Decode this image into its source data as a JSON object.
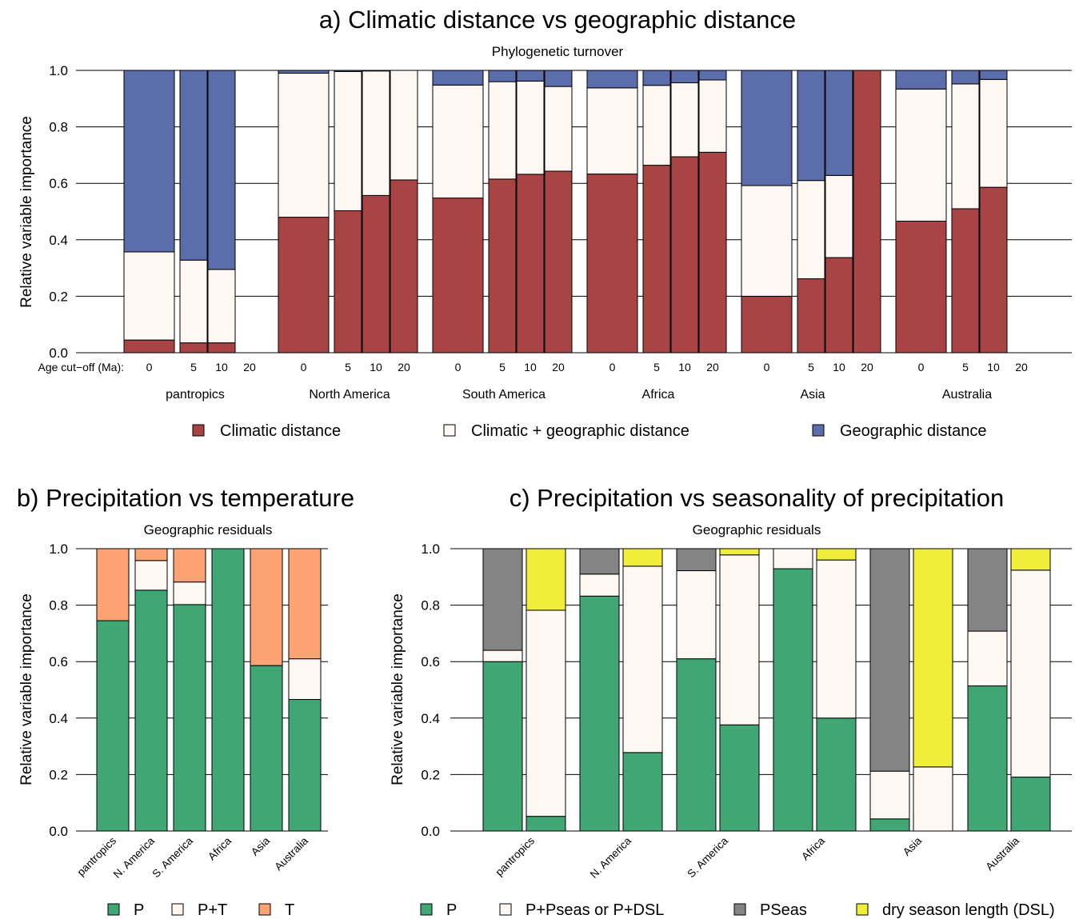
{
  "colors": {
    "climatic": "#A84444",
    "both": "#FEF7F2",
    "geographic": "#5B6DAB",
    "P": "#3FA674",
    "T": "#FCA374",
    "PSeas": "#848484",
    "DSL": "#F1EE3A",
    "grid": "#000000"
  },
  "chart_data": [
    {
      "id": "a",
      "type": "bar",
      "stacked": true,
      "title": "a) Climatic distance vs geographic distance",
      "subtitle": "Phylogenetic turnover",
      "ylabel": "Relative variable importance",
      "ylim": [
        0,
        1
      ],
      "yticks": [
        "0.0",
        "0.2",
        "0.4",
        "0.6",
        "0.8",
        "1.0"
      ],
      "age_label": "Age cut−off (Ma):",
      "ages": [
        "0",
        "5",
        "10",
        "20"
      ],
      "groups": [
        "pantropics",
        "North America",
        "South America",
        "Africa",
        "Asia",
        "Australia"
      ],
      "series_names": [
        "Climatic distance",
        "Climatic + geographic distance",
        "Geographic distance"
      ],
      "data": [
        [
          [
            0.045,
            0.312,
            0.643
          ],
          [
            0.035,
            0.293,
            0.672
          ],
          [
            0.035,
            0.26,
            0.705
          ],
          null
        ],
        [
          [
            0.48,
            0.51,
            0.01
          ],
          [
            0.503,
            0.493,
            0.004
          ],
          [
            0.557,
            0.441,
            0.002
          ],
          [
            0.612,
            0.388,
            0.0
          ]
        ],
        [
          [
            0.548,
            0.4,
            0.052
          ],
          [
            0.615,
            0.345,
            0.04
          ],
          [
            0.632,
            0.33,
            0.038
          ],
          [
            0.643,
            0.3,
            0.057
          ]
        ],
        [
          [
            0.633,
            0.305,
            0.062
          ],
          [
            0.664,
            0.283,
            0.053
          ],
          [
            0.694,
            0.262,
            0.044
          ],
          [
            0.71,
            0.256,
            0.034
          ]
        ],
        [
          [
            0.2,
            0.392,
            0.408
          ],
          [
            0.262,
            0.348,
            0.39
          ],
          [
            0.337,
            0.291,
            0.372
          ],
          [
            1.0,
            0.0,
            0.0
          ]
        ],
        [
          [
            0.466,
            0.468,
            0.066
          ],
          [
            0.51,
            0.442,
            0.048
          ],
          [
            0.586,
            0.382,
            0.032
          ],
          null
        ]
      ]
    },
    {
      "id": "b",
      "type": "bar",
      "stacked": true,
      "title": "b) Precipitation vs temperature",
      "subtitle": "Geographic residuals",
      "ylabel": "Relative variable importance",
      "ylim": [
        0,
        1
      ],
      "yticks": [
        "0.0",
        "0.2",
        "0.4",
        "0.6",
        "0.8",
        "1.0"
      ],
      "categories": [
        "pantropics",
        "N. America",
        "S. America",
        "Africa",
        "Asia",
        "Australia"
      ],
      "series_names": [
        "P",
        "P+T",
        "T"
      ],
      "data": [
        [
          0.745,
          0.0,
          0.255
        ],
        [
          0.853,
          0.105,
          0.042
        ],
        [
          0.802,
          0.08,
          0.118
        ],
        [
          1.0,
          0.0,
          0.0
        ],
        [
          0.586,
          0.0,
          0.414
        ],
        [
          0.466,
          0.144,
          0.39
        ]
      ]
    },
    {
      "id": "c",
      "type": "bar",
      "stacked": true,
      "title": "c) Precipitation vs seasonality of precipitation",
      "subtitle": "Geographic residuals",
      "ylabel": "Relative variable importance",
      "ylim": [
        0,
        1
      ],
      "yticks": [
        "0.0",
        "0.2",
        "0.4",
        "0.6",
        "0.8",
        "1.0"
      ],
      "categories": [
        "pantropics",
        "N. America",
        "S. America",
        "Africa",
        "Asia",
        "Australia"
      ],
      "series_names": [
        "P",
        "P+Pseas or P+DSL",
        "PSeas",
        "dry season length (DSL)"
      ],
      "data": [
        [
          [
            0.6,
            0.04,
            0.36
          ],
          [
            0.052,
            0.73,
            0.218
          ]
        ],
        [
          [
            0.832,
            0.078,
            0.09
          ],
          [
            0.278,
            0.66,
            0.062
          ]
        ],
        [
          [
            0.61,
            0.312,
            0.078
          ],
          [
            0.376,
            0.602,
            0.022
          ]
        ],
        [
          [
            0.929,
            0.071,
            0.0
          ],
          [
            0.4,
            0.56,
            0.04
          ]
        ],
        [
          [
            0.043,
            0.169,
            0.788
          ],
          [
            0.0,
            0.227,
            0.773
          ]
        ],
        [
          [
            0.514,
            0.194,
            0.292
          ],
          [
            0.191,
            0.733,
            0.076
          ]
        ]
      ]
    }
  ]
}
